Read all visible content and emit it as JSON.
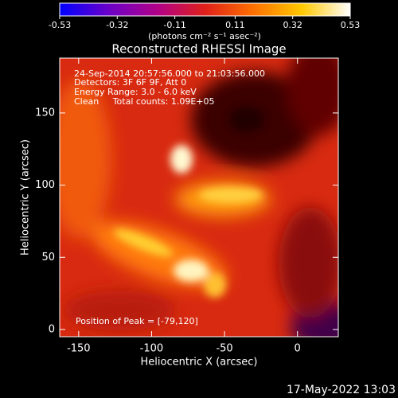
{
  "chart_data": {
    "type": "heatmap",
    "title": "Reconstructed RHESSI Image",
    "xlabel": "Heliocentric X (arcsec)",
    "ylabel": "Heliocentric Y (arcsec)",
    "xlim": [
      -163,
      28
    ],
    "xticks": [
      -150,
      -100,
      -50,
      0
    ],
    "ylim": [
      -5,
      188
    ],
    "yticks": [
      0,
      50,
      100,
      150
    ],
    "colorbar": {
      "label": "(photons cm⁻² s⁻¹ asec⁻²)",
      "range": [
        -0.53,
        0.53
      ],
      "ticks": [
        -0.53,
        -0.32,
        -0.11,
        0.11,
        0.32,
        0.53
      ],
      "colors": [
        "#0000ff",
        "#6a00c8",
        "#b0008a",
        "#e0201a",
        "#ff7000",
        "#ffc800",
        "#ffffff"
      ]
    },
    "annotations": [
      "24-Sep-2014 20:57:56.000 to 21:03:56.000",
      "Detectors: 3F 6F 9F, Att 0",
      "Energy Range: 3.0 - 6.0 keV",
      "Clean     Total counts: 1.09E+05"
    ],
    "peak_label": "Position of Peak = [-79,120]",
    "timestamp": "17-May-2022 13:03"
  }
}
